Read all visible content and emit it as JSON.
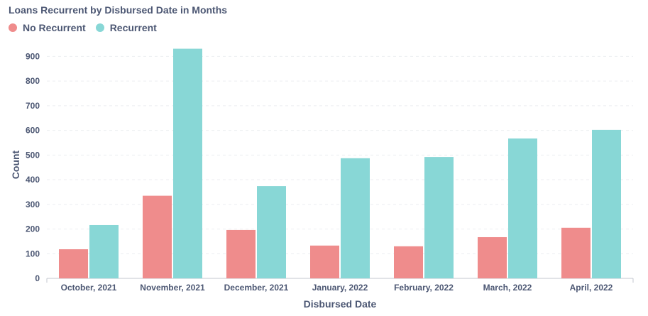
{
  "chart_data": {
    "type": "bar",
    "title": "Loans Recurrent by Disbursed Date in Months",
    "xlabel": "Disbursed Date",
    "ylabel": "Count",
    "ylim": [
      0,
      950
    ],
    "yticks": [
      0,
      100,
      200,
      300,
      400,
      500,
      600,
      700,
      800,
      900
    ],
    "grid": true,
    "legend_position": "top-left",
    "categories": [
      "October, 2021",
      "November, 2021",
      "December, 2021",
      "January, 2022",
      "February, 2022",
      "March, 2022",
      "April, 2022"
    ],
    "series": [
      {
        "name": "No Recurrent",
        "color": "#ef8c8c",
        "values": [
          118,
          335,
          196,
          133,
          130,
          167,
          205
        ]
      },
      {
        "name": "Recurrent",
        "color": "#88d7d6",
        "values": [
          216,
          931,
          374,
          487,
          492,
          567,
          602
        ]
      }
    ]
  }
}
